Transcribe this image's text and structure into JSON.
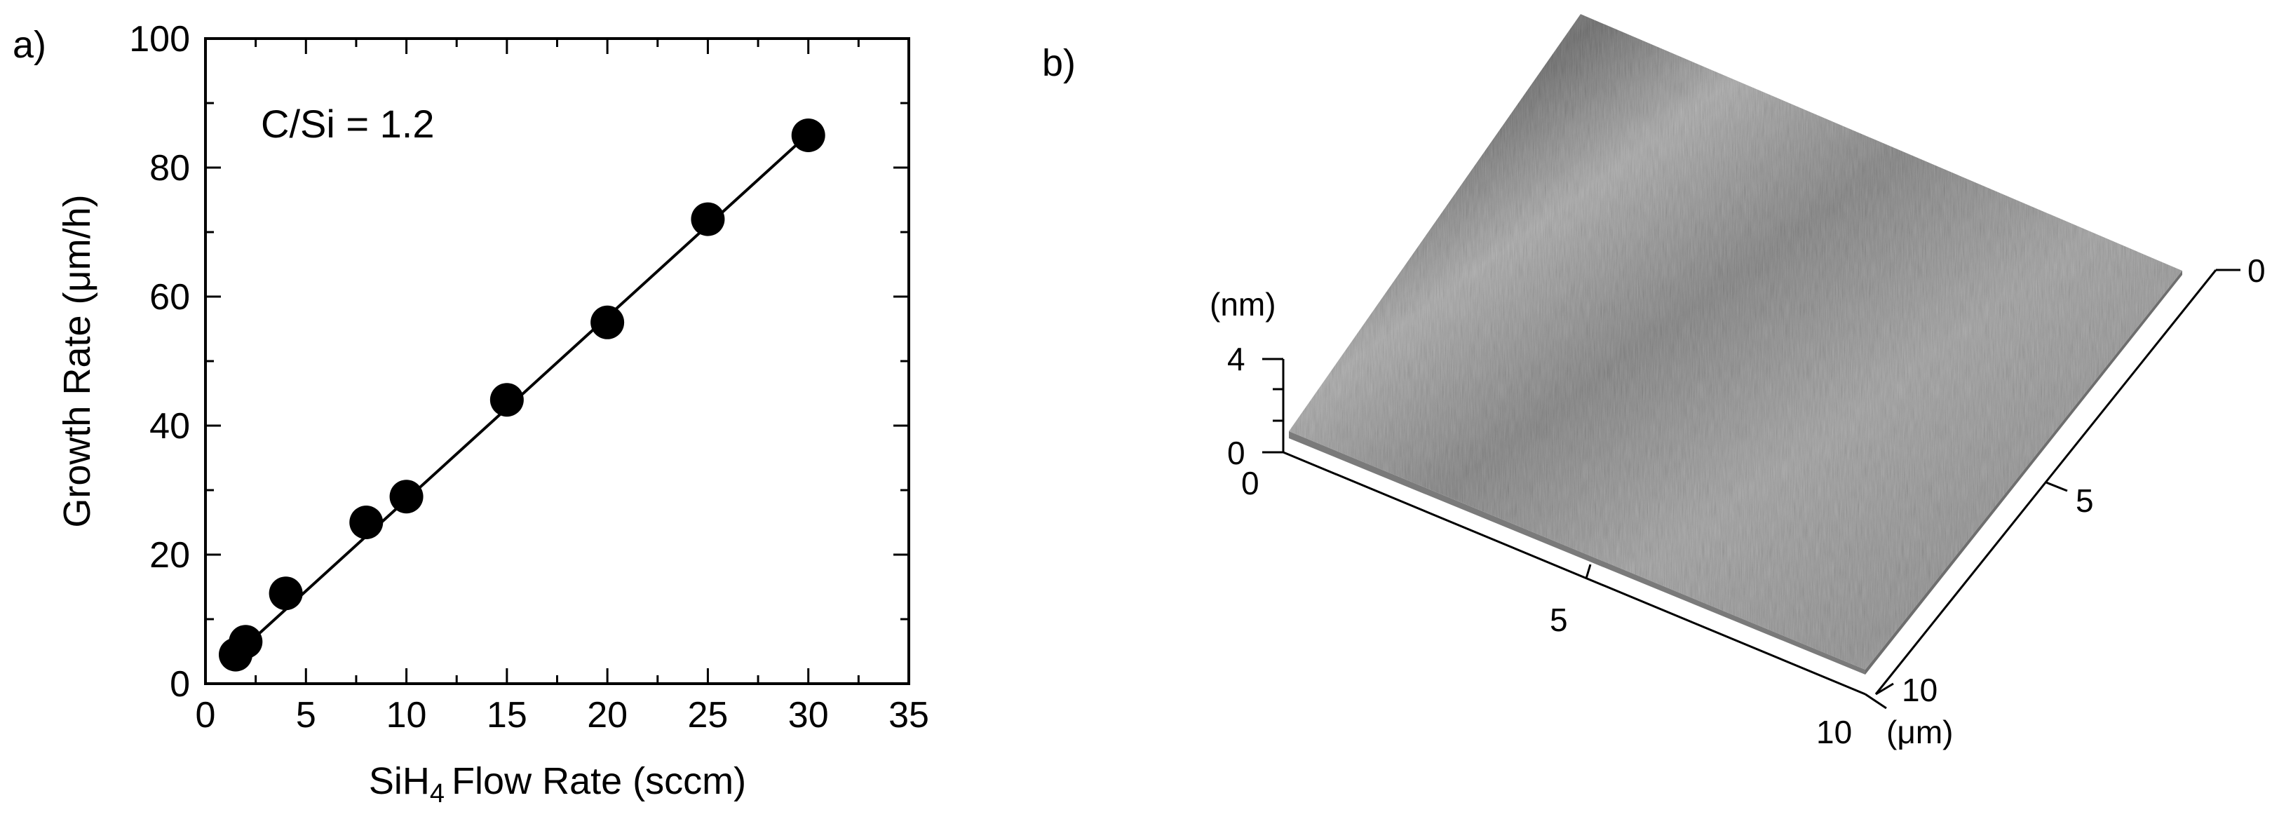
{
  "panels": {
    "a_label": "a)",
    "b_label": "b)"
  },
  "chart_data": [
    {
      "type": "scatter",
      "annotation": "C/Si = 1.2",
      "xlabel": "Flow Rate (sccm)",
      "xlabel_chem": {
        "base": "SiH",
        "sub": "4"
      },
      "ylabel": "Growth Rate (μm/h)",
      "xlim": [
        0,
        35
      ],
      "ylim": [
        0,
        100
      ],
      "xticks": [
        0,
        5,
        10,
        15,
        20,
        25,
        30,
        35
      ],
      "yticks": [
        0,
        20,
        40,
        60,
        80,
        100
      ],
      "grid": false,
      "fit_line": {
        "x": [
          1.2,
          30
        ],
        "y": [
          3.6,
          85.2
        ]
      },
      "series": [
        {
          "x": [
            1.5,
            2,
            4,
            8,
            10,
            15,
            20,
            25,
            30
          ],
          "y": [
            4.5,
            6.5,
            14,
            25,
            29,
            44,
            56,
            72,
            85
          ]
        }
      ]
    },
    {
      "type": "surface3d",
      "z_unit": "(nm)",
      "z_ticks": [
        "4",
        "0"
      ],
      "x_ticks": [
        "0",
        "5",
        "10"
      ],
      "y_ticks": [
        "0",
        "5",
        "10"
      ],
      "xy_unit": "(μm)",
      "surface_color": "#8a8a8a"
    }
  ]
}
